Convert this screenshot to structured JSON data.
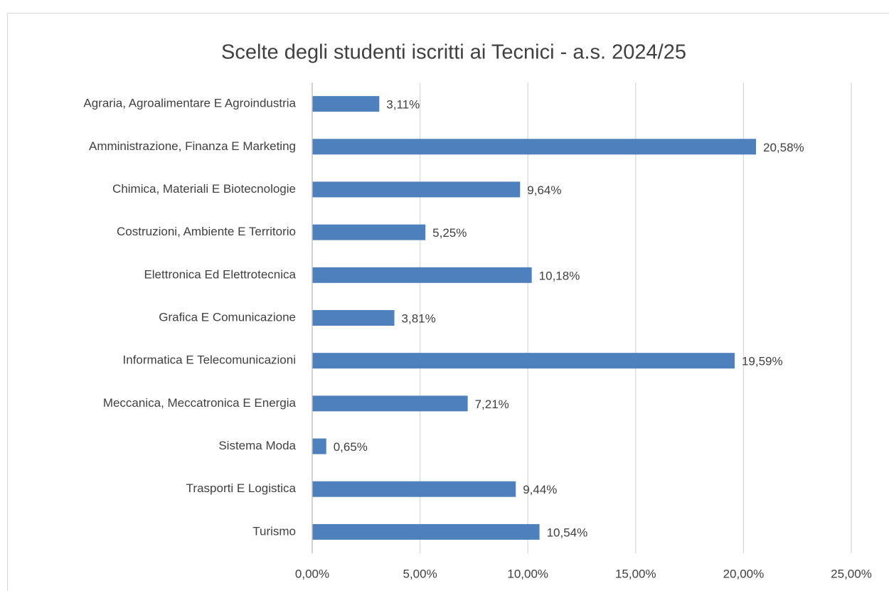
{
  "chart_data": {
    "type": "barh",
    "title": "Scelte degli studenti iscritti ai Tecnici - a.s. 2024/25",
    "categories": [
      "Agraria, Agroalimentare E Agroindustria",
      "Amministrazione, Finanza E Marketing",
      "Chimica, Materiali E Biotecnologie",
      "Costruzioni, Ambiente E Territorio",
      "Elettronica Ed Elettrotecnica",
      "Grafica E Comunicazione",
      "Informatica E Telecomunicazioni",
      "Meccanica, Meccatronica E Energia",
      "Sistema Moda",
      "Trasporti E Logistica",
      "Turismo"
    ],
    "values": [
      3.11,
      20.58,
      9.64,
      5.25,
      10.18,
      3.81,
      19.59,
      7.21,
      0.65,
      9.44,
      10.54
    ],
    "value_labels": [
      "3,11%",
      "20,58%",
      "9,64%",
      "5,25%",
      "10,18%",
      "3,81%",
      "19,59%",
      "7,21%",
      "0,65%",
      "9,44%",
      "10,54%"
    ],
    "color": "#4e80bd",
    "xlim": [
      0,
      25
    ],
    "xticks": [
      {
        "value": 0,
        "label": "0,00%"
      },
      {
        "value": 5,
        "label": "5,00%"
      },
      {
        "value": 10,
        "label": "10,00%"
      },
      {
        "value": 15,
        "label": "15,00%"
      },
      {
        "value": 20,
        "label": "20,00%"
      },
      {
        "value": 25,
        "label": "25,00%"
      }
    ],
    "grid": true
  }
}
